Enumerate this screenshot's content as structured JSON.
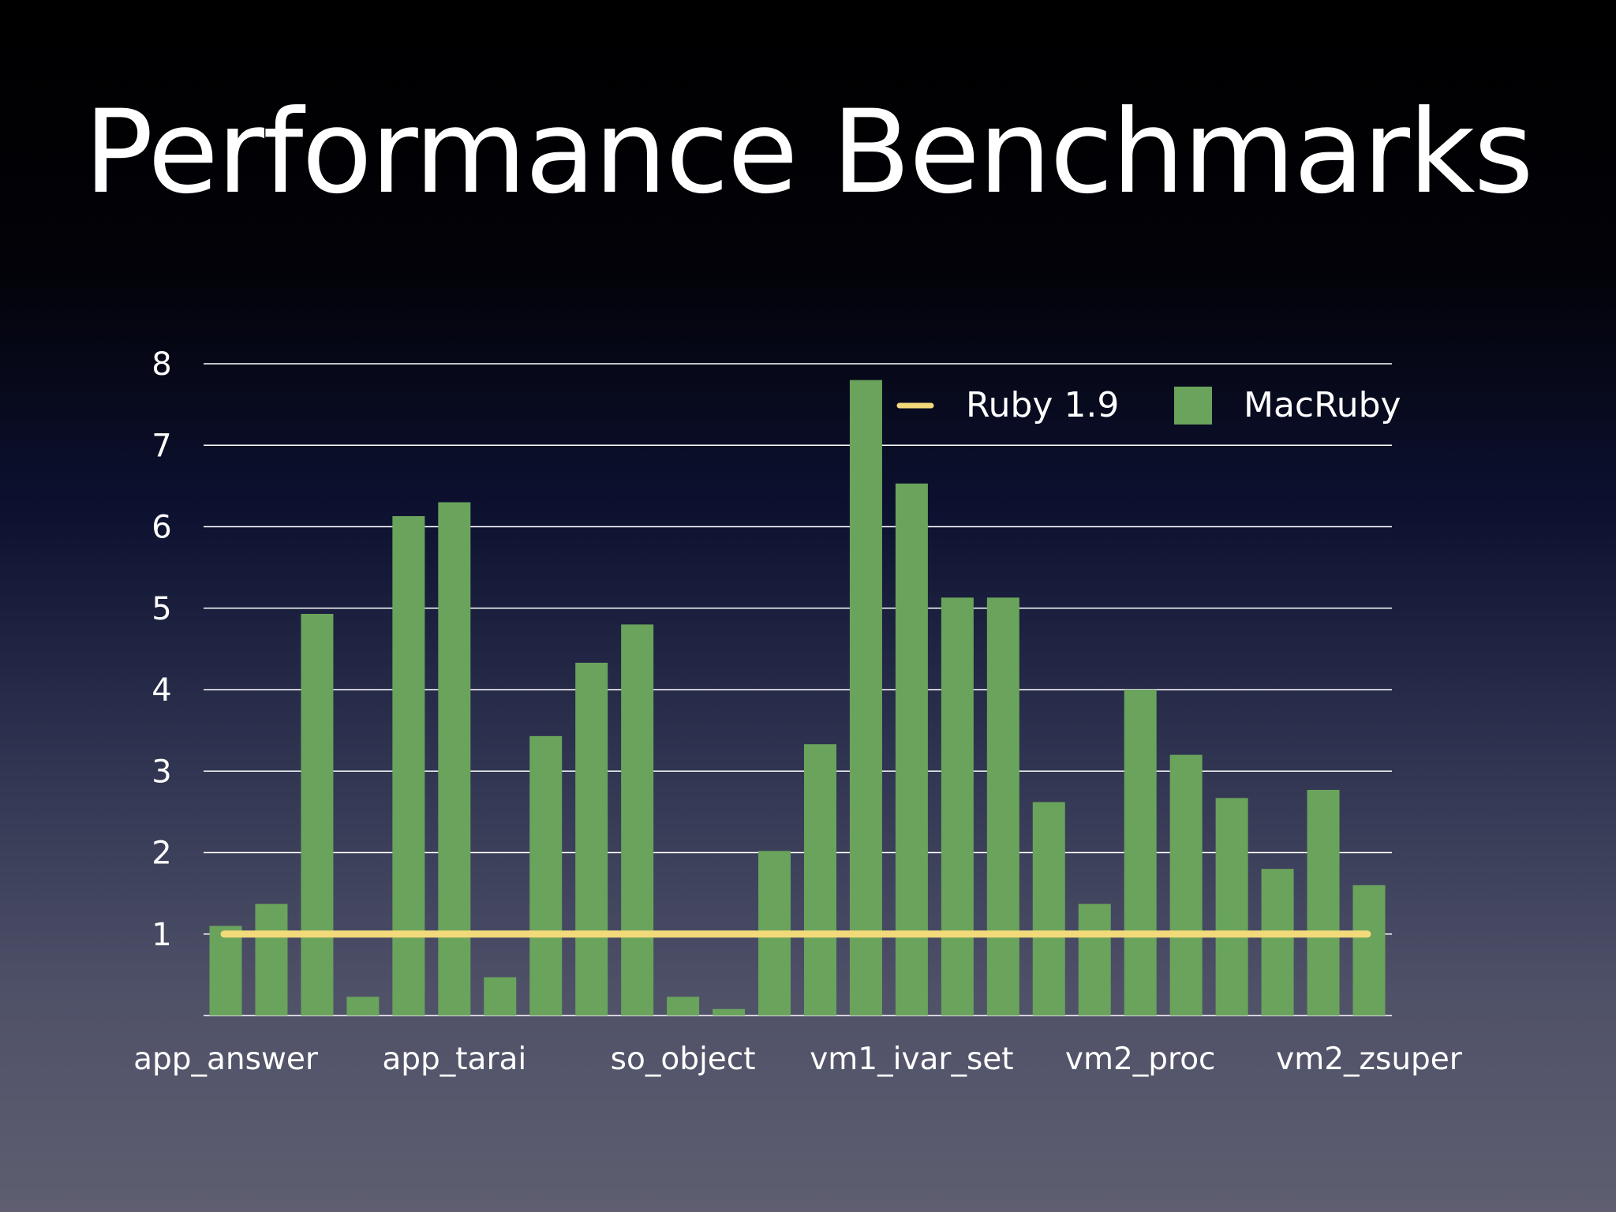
{
  "slide": {
    "title": "Performance Benchmarks"
  },
  "colors": {
    "macruby_bar": "#6aa35c",
    "ruby_line": "#f2d97a",
    "gridline": "#ffffff",
    "text": "#ffffff"
  },
  "chart_data": {
    "type": "bar",
    "title": "",
    "xlabel": "",
    "ylabel": "",
    "ylim": [
      0,
      8
    ],
    "yticks": [
      1,
      2,
      3,
      4,
      5,
      6,
      7,
      8
    ],
    "grid": true,
    "legend_position": "top-right",
    "x_tick_labels": [
      "app_answer",
      "app_tarai",
      "so_object",
      "vm1_ivar_set",
      "vm2_proc",
      "vm2_zsuper"
    ],
    "x_tick_label_indices": [
      0,
      5,
      10,
      15,
      20,
      25
    ],
    "legend": [
      {
        "name": "Ruby 1.9",
        "kind": "line"
      },
      {
        "name": "MacRuby",
        "kind": "bar"
      }
    ],
    "series": [
      {
        "name": "MacRuby",
        "kind": "bar",
        "values": [
          1.1,
          1.37,
          4.93,
          0.23,
          6.13,
          6.3,
          0.47,
          3.43,
          4.33,
          4.8,
          0.23,
          0.08,
          2.02,
          3.33,
          7.8,
          6.53,
          5.13,
          5.13,
          2.62,
          1.37,
          4.0,
          3.2,
          2.67,
          1.8,
          2.77,
          1.6
        ]
      },
      {
        "name": "Ruby 1.9",
        "kind": "line",
        "value": 1.0
      }
    ]
  }
}
